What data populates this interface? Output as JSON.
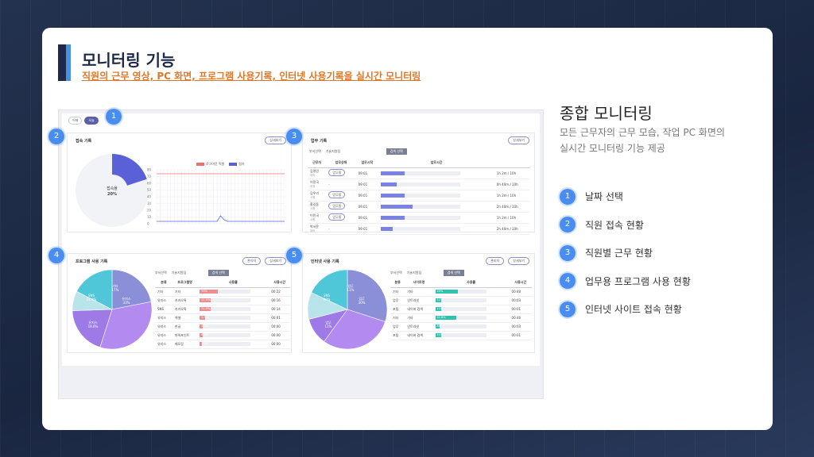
{
  "slide": {
    "title": "모니터링 기능",
    "subtitle": "직원의 근무 영상, PC 화면, 프로그램 사용기록, 인터넷 사용기록을 실시간 모니터링"
  },
  "side": {
    "title": "종합 모니터링",
    "desc_line1": "모든 근무자의 근무 모습, 작업 PC 화면의",
    "desc_line2": "실시간 모니터링 기능 제공",
    "features": [
      {
        "num": "1",
        "label": "날짜 선택"
      },
      {
        "num": "2",
        "label": "직원 접속 현황"
      },
      {
        "num": "3",
        "label": "직원별 근무 현황"
      },
      {
        "num": "4",
        "label": "업무용 프로그램 사용 현황"
      },
      {
        "num": "5",
        "label": "인터넷 사이트 접속 현황"
      }
    ]
  },
  "badges": [
    "1",
    "2",
    "3",
    "4",
    "5"
  ],
  "screen": {
    "tabs": [
      "어제",
      "오늘"
    ],
    "access": {
      "title": "접속 기록",
      "detail": "상세보기",
      "donut_label": "접속율",
      "donut_value": "20%",
      "legend": [
        "로그아웃 직원",
        "접속"
      ],
      "yticks": [
        "80",
        "70",
        "60",
        "50",
        "40",
        "30",
        "20",
        "10",
        "0"
      ],
      "access_share": 0.2
    },
    "work": {
      "title": "업무 기록",
      "detail": "상세보기",
      "filter_label": "부서선택",
      "filter_placeholder": "기술지원팀",
      "search": "검색 선택",
      "headers": [
        "근무자",
        "업무상태",
        "업무시작",
        "업무시간"
      ],
      "rows": [
        {
          "name": "김영민",
          "role": "대리",
          "status": "업무중",
          "start": "09:01",
          "time": "1h 2m / 10h",
          "progress": 0.3
        },
        {
          "name": "이정국",
          "role": "과장",
          "status": "-",
          "start": "09:01",
          "time": "0h 40m / 10h",
          "progress": 0.2
        },
        {
          "name": "김우리",
          "role": "사원",
          "status": "업무중",
          "start": "09:01",
          "time": "1h 2m / 10h",
          "progress": 0.3
        },
        {
          "name": "홍길동",
          "role": "사원",
          "status": "업무중",
          "start": "09:01",
          "time": "2h 40m / 10h",
          "progress": 0.4
        },
        {
          "name": "이민국",
          "role": "사원",
          "status": "업무중",
          "start": "09:01",
          "time": "1h 2m / 10h",
          "progress": 0.3
        },
        {
          "name": "박서윤",
          "role": "대리",
          "status": "-",
          "start": "09:01",
          "time": "2h 40m / 10h",
          "progress": 0.15
        }
      ]
    },
    "program": {
      "title": "프로그램 사용 기록",
      "btn1": "관리자",
      "btn2": "상세보기",
      "filter_label": "부서선택",
      "filter_placeholder": "기술지원팀",
      "search": "검색 선택",
      "headers": [
        "분류",
        "프로그램명",
        "사용률",
        "사용시간"
      ],
      "rows": [
        {
          "cat": "기타",
          "name": "기타",
          "pct": "35%",
          "time": "00:22",
          "progress": 0.35
        },
        {
          "cat": "유지스",
          "name": "카카오톡",
          "pct": "21.9%",
          "time": "00:16",
          "progress": 0.22
        },
        {
          "cat": "SNS",
          "name": "카카오톡",
          "pct": "21.9%",
          "time": "00:14",
          "progress": 0.22
        },
        {
          "cat": "유지스",
          "name": "엑셀",
          "pct": "9.5%",
          "time": "00:01",
          "progress": 0.1
        },
        {
          "cat": "유지스",
          "name": "한글",
          "pct": "5.5%",
          "time": "00:00",
          "progress": 0.06
        },
        {
          "cat": "유지스",
          "name": "파워포인트",
          "pct": "6.2%",
          "time": "00:00",
          "progress": 0.06
        },
        {
          "cat": "유지스",
          "name": "메모장",
          "pct": "3.5%",
          "time": "00:00",
          "progress": 0.04
        }
      ],
      "pie_labels": [
        "SNS 21.9%",
        "유지스 33%",
        "유지스 19.6%",
        "기타 17%"
      ]
    },
    "internet": {
      "title": "인터넷 사용 기록",
      "btn1": "관리자",
      "btn2": "상세보기",
      "filter_label": "부서선택",
      "filter_placeholder": "기술지원팀",
      "search": "검색 선택",
      "headers": [
        "분류",
        "사이트명",
        "사용률",
        "사용시간"
      ],
      "rows": [
        {
          "cat": "기타",
          "name": "기타",
          "pct": "45%",
          "time": "00:48",
          "progress": 0.45
        },
        {
          "cat": "업무",
          "name": "인트라넷",
          "pct": "11%",
          "time": "00:03",
          "progress": 0.11
        },
        {
          "cat": "포털",
          "name": "네이버 검색",
          "pct": "12%",
          "time": "00:01",
          "progress": 0.12
        },
        {
          "cat": "기타",
          "name": "기타",
          "pct": "41.8%",
          "time": "00:46",
          "progress": 0.42
        },
        {
          "cat": "업무",
          "name": "인트라넷",
          "pct": "8%",
          "time": "00:03",
          "progress": 0.08
        },
        {
          "cat": "포털",
          "name": "네이버 검색",
          "pct": "11%",
          "time": "00:01",
          "progress": 0.11
        }
      ],
      "pie_labels": [
        "SNS 30%",
        "업무 30%",
        "업무 11%",
        "업무 11%"
      ]
    }
  },
  "colors": {
    "accent": "#4a8df0",
    "navy": "#1e2a4a",
    "orange": "#e0782a",
    "donut": "#5a61d6",
    "program_bar": "#f08c8c",
    "internet_bar": "#2ec4b0",
    "work_bar": "#7a82e6"
  }
}
